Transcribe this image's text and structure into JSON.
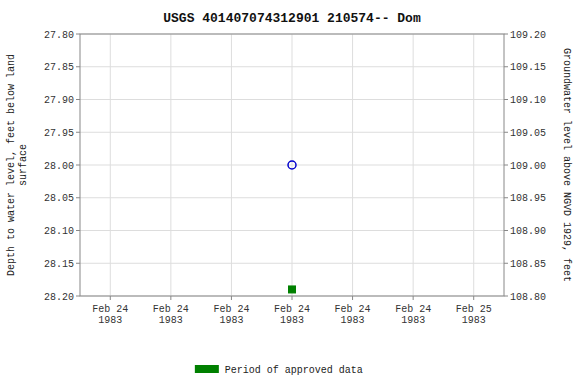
{
  "chart_data": {
    "type": "scatter",
    "title": "USGS 401407074312901 210574-- Dom",
    "y_label": "Depth to water level, feet below land\nsurface",
    "y2_label": "Groundwater level above NGVD 1929, feet",
    "categories": [
      "Feb 24\n1983",
      "Feb 24\n1983",
      "Feb 24\n1983",
      "Feb 24\n1983",
      "Feb 24\n1983",
      "Feb 24\n1983",
      "Feb 25\n1983"
    ],
    "series": [
      {
        "color": "#0000cc",
        "marker": "circle-open",
        "values": [
          null,
          null,
          null,
          28.0,
          null,
          null,
          null
        ]
      },
      {
        "name": "Period of approved data",
        "color": "#008000",
        "marker": "square",
        "values": [
          null,
          null,
          null,
          28.19,
          null,
          null,
          null
        ]
      }
    ],
    "ylim": [
      28.2,
      27.8
    ],
    "yticks": [
      {
        "value": 27.8,
        "label": "27.80"
      },
      27.85,
      {
        "value": 27.9,
        "label": "27.90"
      },
      27.95,
      {
        "value": 28.0,
        "label": "28.00"
      },
      28.05,
      {
        "value": 28.1,
        "label": "28.10"
      },
      28.15,
      {
        "value": 28.2,
        "label": "28.20"
      }
    ],
    "y2lim": [
      108.8,
      109.2
    ],
    "y2ticks": [
      {
        "value": 108.8,
        "label": "108.80"
      },
      108.85,
      {
        "value": 108.9,
        "label": "108.90"
      },
      108.95,
      {
        "value": 109.0,
        "label": "109.00"
      },
      109.05,
      {
        "value": 109.1,
        "label": "109.10"
      },
      109.15,
      {
        "value": 109.2,
        "label": "109.20"
      }
    ],
    "grid": true,
    "legend": "bottom"
  }
}
